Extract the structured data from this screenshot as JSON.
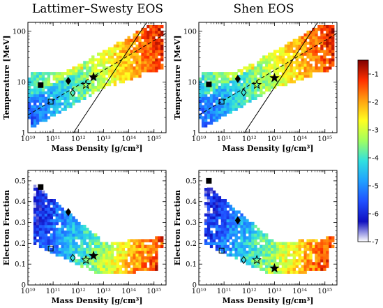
{
  "colors": {
    "colormap": [
      "#ffffff",
      "#1010c0",
      "#2050ff",
      "#20a0ff",
      "#30e0e0",
      "#a0ff60",
      "#ffff20",
      "#ffa010",
      "#ff3000",
      "#800000"
    ],
    "line": "#000000"
  },
  "colorbar": {
    "range": [
      -7,
      -0.5
    ],
    "ticks": [
      "-1",
      "-2",
      "-3",
      "-4",
      "-5",
      "-6",
      "-7"
    ],
    "tick_values": [
      -1,
      -2,
      -3,
      -4,
      -5,
      -6,
      -7
    ]
  },
  "chart_data": [
    {
      "type": "heatmap",
      "title": "Lattimer–Swesty EOS",
      "xlabel": "Mass Density [g/cm³]",
      "ylabel": "Temperature [MeV]",
      "xscale": "log",
      "yscale": "log",
      "xlim": [
        10000000000.0,
        3000000000000000.0
      ],
      "ylim": [
        1,
        150
      ],
      "xticks": [
        "10¹⁰",
        "10¹¹",
        "10¹²",
        "10¹³",
        "10¹⁴",
        "10¹⁵"
      ],
      "yticks": [
        "1",
        "10",
        "100"
      ],
      "region": "temperature",
      "markers": [
        {
          "symbol": "filled-square",
          "x": 32000000000.0,
          "y": 8.7
        },
        {
          "symbol": "open-square",
          "x": 80000000000.0,
          "y": 4.1
        },
        {
          "symbol": "filled-diamond",
          "x": 400000000000.0,
          "y": 10.5
        },
        {
          "symbol": "open-diamond",
          "x": 600000000000.0,
          "y": 6.1
        },
        {
          "symbol": "open-star",
          "x": 2000000000000.0,
          "y": 8.8
        },
        {
          "symbol": "filled-star",
          "x": 4000000000000.0,
          "y": 12.5
        }
      ]
    },
    {
      "type": "heatmap",
      "title": "Shen EOS",
      "xlabel": "Mass Density [g/cm³]",
      "ylabel": "Temperature [MeV]",
      "xscale": "log",
      "yscale": "log",
      "xlim": [
        10000000000.0,
        3000000000000000.0
      ],
      "ylim": [
        1,
        150
      ],
      "xticks": [
        "10¹⁰",
        "10¹¹",
        "10¹²",
        "10¹³",
        "10¹⁴",
        "10¹⁵"
      ],
      "yticks": [
        "1",
        "10",
        "100"
      ],
      "region": "temperature",
      "markers": [
        {
          "symbol": "filled-square",
          "x": 25000000000.0,
          "y": 9.0
        },
        {
          "symbol": "open-square",
          "x": 80000000000.0,
          "y": 4.1
        },
        {
          "symbol": "filled-diamond",
          "x": 350000000000.0,
          "y": 11.5
        },
        {
          "symbol": "open-diamond",
          "x": 600000000000.0,
          "y": 6.2
        },
        {
          "symbol": "open-star",
          "x": 2000000000000.0,
          "y": 8.8
        },
        {
          "symbol": "filled-star",
          "x": 10000000000000.0,
          "y": 12.0
        }
      ]
    },
    {
      "type": "heatmap",
      "title": "",
      "xlabel": "Mass Density [g/cm³]",
      "ylabel": "Electron Fraction",
      "xscale": "log",
      "yscale": "linear",
      "xlim": [
        10000000000.0,
        3000000000000000.0
      ],
      "ylim": [
        0,
        0.55
      ],
      "xticks": [
        "10¹⁰",
        "10¹¹",
        "10¹²",
        "10¹³",
        "10¹⁴",
        "10¹⁵"
      ],
      "yticks": [
        "0",
        "0.1",
        "0.2",
        "0.3",
        "0.4",
        "0.5"
      ],
      "region": "ye",
      "markers": [
        {
          "symbol": "filled-square",
          "x": 32000000000.0,
          "y": 0.47
        },
        {
          "symbol": "open-square",
          "x": 80000000000.0,
          "y": 0.175
        },
        {
          "symbol": "filled-diamond",
          "x": 400000000000.0,
          "y": 0.35
        },
        {
          "symbol": "open-diamond",
          "x": 600000000000.0,
          "y": 0.13
        },
        {
          "symbol": "open-star",
          "x": 2000000000000.0,
          "y": 0.12
        },
        {
          "symbol": "filled-star",
          "x": 4000000000000.0,
          "y": 0.14
        }
      ]
    },
    {
      "type": "heatmap",
      "title": "",
      "xlabel": "Mass Density [g/cm³]",
      "ylabel": "Electron Fraction",
      "xscale": "log",
      "yscale": "linear",
      "xlim": [
        10000000000.0,
        3000000000000000.0
      ],
      "ylim": [
        0,
        0.55
      ],
      "xticks": [
        "10¹⁰",
        "10¹¹",
        "10¹²",
        "10¹³",
        "10¹⁴",
        "10¹⁵"
      ],
      "yticks": [
        "0",
        "0.1",
        "0.2",
        "0.3",
        "0.4",
        "0.5"
      ],
      "region": "ye",
      "markers": [
        {
          "symbol": "filled-square",
          "x": 25000000000.0,
          "y": 0.5
        },
        {
          "symbol": "open-square",
          "x": 80000000000.0,
          "y": 0.165
        },
        {
          "symbol": "filled-diamond",
          "x": 350000000000.0,
          "y": 0.31
        },
        {
          "symbol": "open-diamond",
          "x": 600000000000.0,
          "y": 0.12
        },
        {
          "symbol": "open-star",
          "x": 2000000000000.0,
          "y": 0.12
        },
        {
          "symbol": "filled-star",
          "x": 10000000000000.0,
          "y": 0.08
        }
      ]
    }
  ]
}
